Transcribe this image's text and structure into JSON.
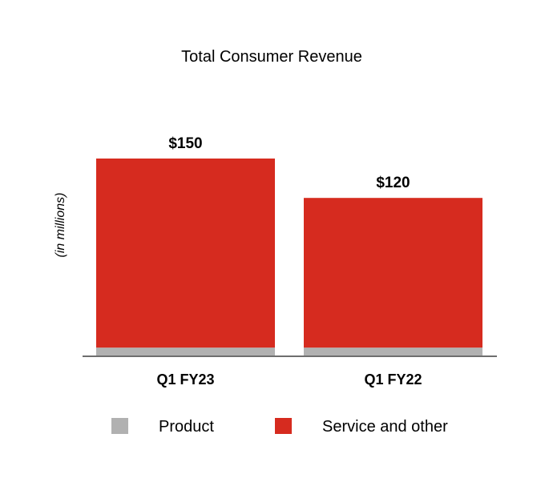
{
  "chart_data": {
    "type": "bar",
    "stacked": true,
    "title": "Total Consumer Revenue",
    "ylabel": "(in millions)",
    "xlabel": "",
    "categories": [
      "Q1 FY23",
      "Q1 FY22"
    ],
    "series": [
      {
        "name": "Product",
        "values": [
          6,
          6
        ],
        "color": "#b1b1b1"
      },
      {
        "name": "Service and other",
        "values": [
          144,
          114
        ],
        "color": "#d62b1f"
      }
    ],
    "totals": [
      150,
      120
    ],
    "total_labels": [
      "$150",
      "$120"
    ],
    "ylim": [
      0,
      150
    ],
    "grid": false,
    "legend_position": "bottom"
  }
}
